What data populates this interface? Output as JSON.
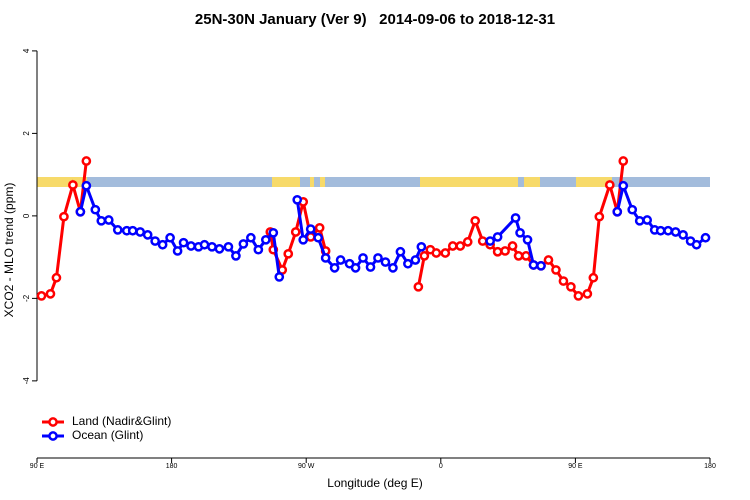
{
  "chart_data": {
    "type": "line",
    "title": "25N-30N January (Ver 9)   2014-09-06 to 2018-12-31",
    "x_label": "Longitude (deg E)",
    "y_label": "XCO2 - MLO trend (ppm)",
    "xlim": [
      90,
      540
    ],
    "ylim": [
      -5.87,
      4.24
    ],
    "xticks": [
      {
        "value": 90,
        "label": "90 E"
      },
      180,
      {
        "value": 270,
        "label": "90 W"
      },
      {
        "value": 360,
        "label": "0"
      },
      {
        "value": 450,
        "label": "90 E"
      },
      {
        "value": 540,
        "label": "180"
      }
    ],
    "yticks": [
      -4,
      -2,
      0,
      2,
      4
    ],
    "legend": "bottomleft",
    "series": [
      {
        "name": "Land (Nadir&Glint)",
        "color": "#ff0000",
        "x": [
          93,
          99,
          103,
          108,
          114,
          119,
          123,
          null,
          246,
          248,
          254,
          258,
          263,
          268,
          273,
          279,
          283,
          null,
          345,
          349,
          353,
          357,
          363,
          368,
          373,
          378,
          383,
          388,
          393,
          398,
          403,
          408,
          412,
          417,
          422,
          427,
          432,
          437,
          442,
          447,
          452,
          458,
          462,
          466,
          473,
          478,
          482
        ],
        "values": [
          -1.94,
          -1.89,
          -1.5,
          -0.02,
          0.75,
          0.1,
          1.33,
          null,
          -0.39,
          -0.82,
          -1.31,
          -0.92,
          -0.39,
          0.34,
          -0.51,
          -0.29,
          -0.85,
          null,
          -1.72,
          -0.97,
          -0.82,
          -0.9,
          -0.9,
          -0.73,
          -0.73,
          -0.63,
          -0.12,
          -0.61,
          -0.7,
          -0.87,
          -0.85,
          -0.73,
          -0.97,
          -0.97,
          -1.19,
          -1.21,
          -1.07,
          -1.31,
          -1.58,
          -1.72,
          -1.94,
          -1.89,
          -1.5,
          -0.02,
          0.75,
          0.1,
          1.33
        ]
      },
      {
        "name": "Ocean (Glint)",
        "color": "#0000ff",
        "x": [
          119,
          123,
          129,
          133,
          138,
          144,
          150,
          154,
          159,
          164,
          169,
          174,
          179,
          184,
          188,
          193,
          198,
          202,
          207,
          212,
          218,
          223,
          228,
          233,
          238,
          243,
          248,
          252,
          null,
          264,
          268,
          273,
          278,
          283,
          289,
          293,
          299,
          303,
          308,
          313,
          318,
          323,
          328,
          333,
          338,
          343,
          347,
          null,
          393,
          398,
          410,
          413,
          418,
          422,
          427,
          null,
          478,
          482,
          488,
          493,
          498,
          503,
          507,
          512,
          517,
          522,
          527,
          531,
          537
        ],
        "values": [
          0.1,
          0.73,
          0.15,
          -0.12,
          -0.1,
          -0.34,
          -0.36,
          -0.36,
          -0.39,
          -0.46,
          -0.61,
          -0.7,
          -0.53,
          -0.85,
          -0.65,
          -0.73,
          -0.75,
          -0.7,
          -0.75,
          -0.8,
          -0.75,
          -0.97,
          -0.68,
          -0.53,
          -0.82,
          -0.58,
          -0.41,
          -1.48,
          null,
          0.39,
          -0.58,
          -0.32,
          -0.53,
          -1.02,
          -1.26,
          -1.07,
          -1.16,
          -1.26,
          -1.02,
          -1.24,
          -1.02,
          -1.12,
          -1.26,
          -0.87,
          -1.16,
          -1.07,
          -0.75,
          null,
          -0.61,
          -0.51,
          -0.05,
          -0.41,
          -0.58,
          -1.19,
          -1.21,
          null,
          0.1,
          0.73,
          0.15,
          -0.12,
          -0.1,
          -0.34,
          -0.36,
          -0.36,
          -0.39,
          -0.46,
          -0.61,
          -0.7,
          -0.53
        ]
      }
    ]
  }
}
